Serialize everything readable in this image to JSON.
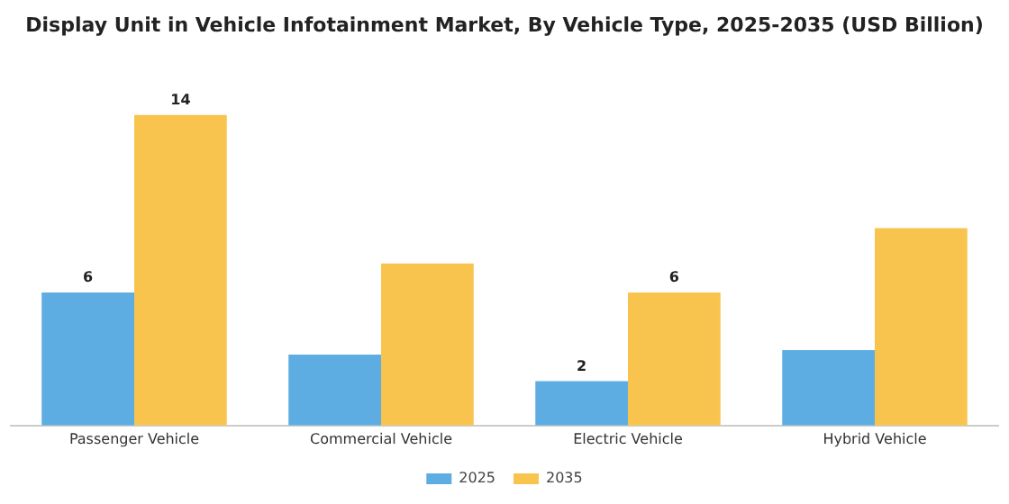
{
  "chart_data": {
    "type": "bar",
    "title": "Display Unit in Vehicle Infotainment Market, By Vehicle Type, 2025-2035 (USD Billion)",
    "categories": [
      "Passenger Vehicle",
      "Commercial Vehicle",
      "Electric Vehicle",
      "Hybrid Vehicle"
    ],
    "series": [
      {
        "name": "2025",
        "color": "#5dade2",
        "values": [
          6,
          3.2,
          2,
          3.4
        ],
        "value_labels": [
          "6",
          null,
          "2",
          null
        ]
      },
      {
        "name": "2035",
        "color": "#f9c44e",
        "values": [
          14,
          7.3,
          6,
          8.9
        ],
        "value_labels": [
          "14",
          null,
          "6",
          null
        ]
      }
    ],
    "legend": "bottom",
    "grid": false,
    "tick_labels": "x"
  }
}
